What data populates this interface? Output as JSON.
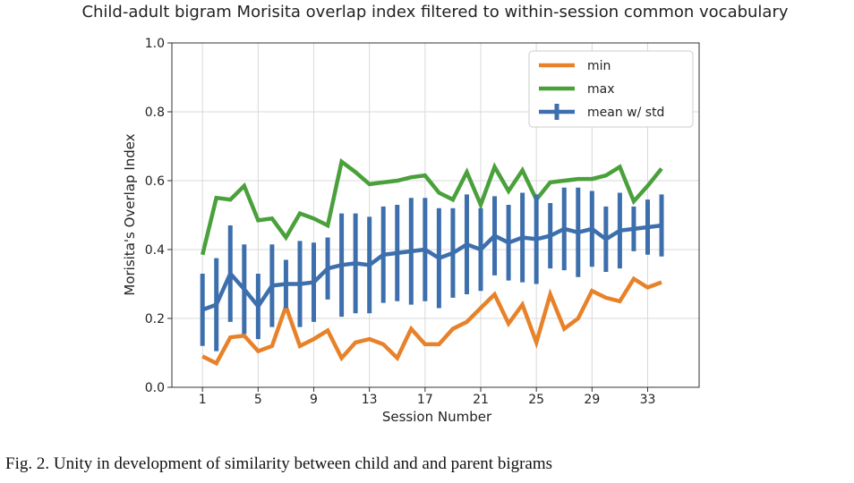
{
  "chart_data": {
    "type": "line",
    "title": "Child-adult bigram Morisita overlap index filtered to within-session common vocabulary",
    "xlabel": "Session Number",
    "ylabel": "Morisita's Overlap Index",
    "xlim": [
      -1.2,
      36.7
    ],
    "ylim": [
      0.0,
      1.0
    ],
    "xticks": [
      1,
      5,
      9,
      13,
      17,
      21,
      25,
      29,
      33
    ],
    "yticks": [
      0.0,
      0.2,
      0.4,
      0.6,
      0.8,
      1.0
    ],
    "ytick_labels": [
      "0.0",
      "0.2",
      "0.4",
      "0.6",
      "0.8",
      "1.0"
    ],
    "grid": true,
    "legend_position": "top-right",
    "x": [
      1,
      2,
      3,
      4,
      5,
      6,
      7,
      8,
      9,
      10,
      11,
      12,
      13,
      14,
      15,
      16,
      17,
      18,
      19,
      20,
      21,
      22,
      23,
      24,
      25,
      26,
      27,
      28,
      29,
      30,
      31,
      32,
      33,
      34
    ],
    "series": [
      {
        "name": "min",
        "color": "#e8822a",
        "values": [
          0.09,
          0.07,
          0.145,
          0.15,
          0.105,
          0.12,
          0.235,
          0.12,
          0.14,
          0.165,
          0.085,
          0.13,
          0.14,
          0.125,
          0.085,
          0.17,
          0.125,
          0.125,
          0.17,
          0.19,
          0.23,
          0.27,
          0.185,
          0.24,
          0.13,
          0.27,
          0.17,
          0.2,
          0.28,
          0.26,
          0.25,
          0.315,
          0.29,
          0.305
        ]
      },
      {
        "name": "max",
        "color": "#4aa03b",
        "values": [
          0.385,
          0.55,
          0.545,
          0.585,
          0.485,
          0.49,
          0.435,
          0.505,
          0.49,
          0.47,
          0.655,
          0.625,
          0.59,
          0.595,
          0.6,
          0.61,
          0.615,
          0.565,
          0.545,
          0.625,
          0.53,
          0.64,
          0.57,
          0.63,
          0.545,
          0.595,
          0.6,
          0.605,
          0.605,
          0.615,
          0.64,
          0.54,
          0.585,
          0.635
        ]
      },
      {
        "name": "mean w/ std",
        "color": "#3d6fad",
        "values": [
          0.225,
          0.24,
          0.33,
          0.285,
          0.235,
          0.295,
          0.3,
          0.3,
          0.305,
          0.345,
          0.355,
          0.36,
          0.355,
          0.385,
          0.39,
          0.395,
          0.4,
          0.375,
          0.39,
          0.415,
          0.4,
          0.44,
          0.42,
          0.435,
          0.43,
          0.44,
          0.46,
          0.45,
          0.46,
          0.43,
          0.455,
          0.46,
          0.465,
          0.47
        ],
        "std": [
          0.105,
          0.135,
          0.14,
          0.13,
          0.095,
          0.12,
          0.07,
          0.125,
          0.115,
          0.09,
          0.15,
          0.145,
          0.14,
          0.14,
          0.14,
          0.155,
          0.15,
          0.145,
          0.13,
          0.145,
          0.12,
          0.115,
          0.11,
          0.13,
          0.13,
          0.095,
          0.12,
          0.13,
          0.11,
          0.095,
          0.11,
          0.065,
          0.08,
          0.09
        ]
      }
    ]
  },
  "caption": "Fig. 2.  Unity in development of similarity between child and and parent bigrams"
}
